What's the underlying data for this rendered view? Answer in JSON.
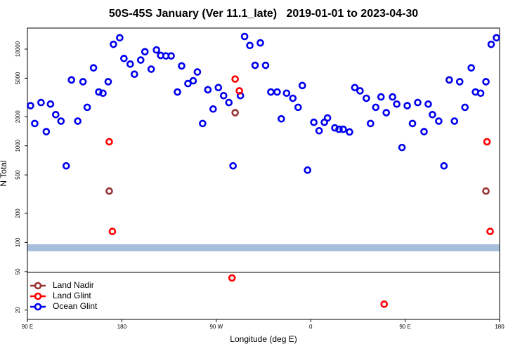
{
  "chart_data": {
    "type": "scatter",
    "title": "50S-45S January (Ver 11.1_late)   2019-01-01 to 2023-04-30",
    "x_label": "Longitude (deg E)",
    "y_label": "N Total",
    "xlim": [
      90,
      540
    ],
    "xticks": [
      {
        "value": 90,
        "label": "90 E"
      },
      180,
      {
        "value": 270,
        "label": "90 W"
      },
      {
        "value": 360,
        "label": "0"
      },
      {
        "value": 450,
        "label": "90 E"
      },
      {
        "value": 540,
        "label": "180"
      }
    ],
    "ylim": [
      16,
      16500
    ],
    "log_y": true,
    "yticks": [
      20,
      50,
      100,
      200,
      500,
      1000,
      2000,
      5000,
      10000
    ],
    "legend": "bottom-left",
    "series": [
      {
        "name": "Land Nadir",
        "color": "#993333",
        "x": [
          168,
          288,
          527
        ],
        "values": [
          340,
          2200,
          340
        ]
      },
      {
        "name": "Land Glint",
        "color": "#ff0000",
        "x": [
          168,
          171,
          288,
          292,
          285,
          430,
          528,
          531
        ],
        "values": [
          1100,
          130,
          4900,
          3700,
          43,
          23,
          1100,
          130
        ]
      },
      {
        "name": "Ocean Glint",
        "color": "#0000ee",
        "x": [
          93,
          97,
          103,
          108,
          112,
          117,
          122,
          127,
          132,
          138,
          143,
          147,
          153,
          158,
          162,
          167,
          172,
          178,
          182,
          188,
          192,
          198,
          202,
          208,
          213,
          217,
          222,
          227,
          233,
          237,
          243,
          248,
          252,
          257,
          262,
          267,
          272,
          277,
          282,
          286,
          293,
          297,
          302,
          307,
          312,
          317,
          322,
          328,
          332,
          337,
          343,
          348,
          352,
          357,
          363,
          368,
          373,
          376,
          383,
          387,
          391,
          397,
          402,
          407,
          413,
          417,
          422,
          427,
          432,
          438,
          442,
          447,
          452,
          457,
          462,
          468,
          472,
          476,
          482,
          487,
          492,
          497,
          502,
          507,
          513,
          517,
          522,
          527,
          532,
          537
        ],
        "values": [
          2600,
          1700,
          2800,
          1400,
          2700,
          2100,
          1800,
          620,
          4800,
          1800,
          4600,
          2500,
          6400,
          3600,
          3500,
          4600,
          11200,
          13100,
          8000,
          7000,
          5500,
          7700,
          9400,
          6200,
          9800,
          8600,
          8500,
          8500,
          3600,
          6700,
          4400,
          4700,
          5800,
          1700,
          3800,
          2400,
          4000,
          3300,
          2800,
          620,
          3300,
          13500,
          10900,
          6800,
          11600,
          6800,
          3600,
          3600,
          1900,
          3500,
          3100,
          2500,
          4200,
          560,
          1750,
          1430,
          1750,
          1940,
          1530,
          1480,
          1480,
          1390,
          4000,
          3700,
          3100,
          1700,
          2500,
          3200,
          2200,
          3200,
          2700,
          960,
          2600,
          1700,
          2800,
          1400,
          2700,
          2100,
          1800,
          620,
          4800,
          1800,
          4600,
          2500,
          6400,
          3600,
          3500,
          4600,
          11200,
          13100
        ]
      }
    ]
  }
}
